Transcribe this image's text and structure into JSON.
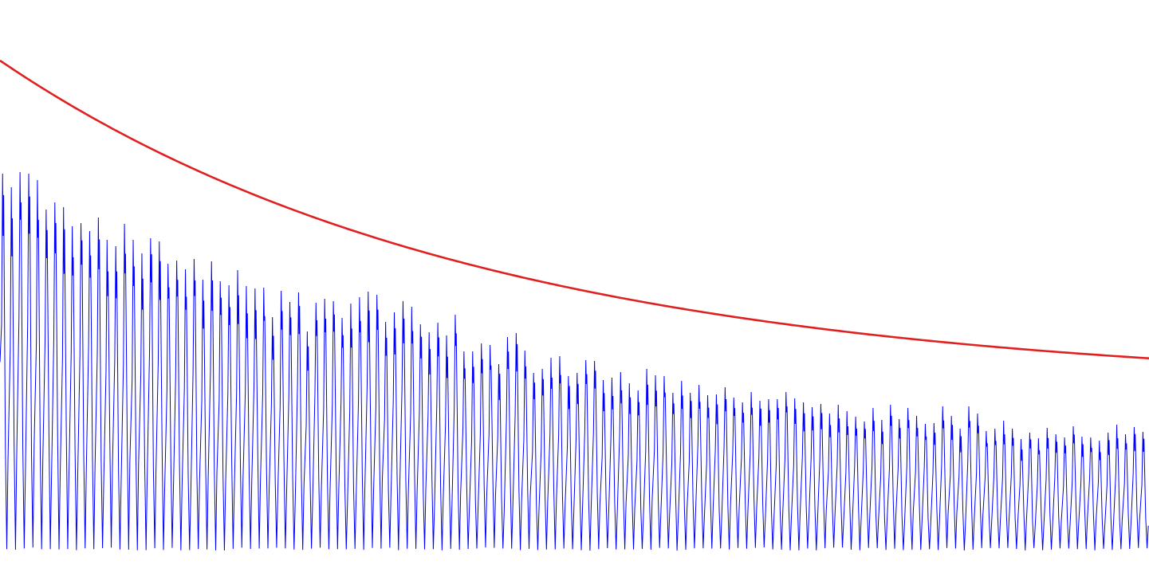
{
  "chart_data": {
    "type": "line",
    "title": "",
    "xlabel": "",
    "ylabel": "",
    "xlim": [
      0,
      132
    ],
    "ylim": [
      0,
      738
    ],
    "grid": false,
    "axes_visible": false,
    "series": [
      {
        "key": "signal",
        "color": "#0000ff",
        "style": "oscillating",
        "cycles": 132,
        "base_value": 47,
        "peak_values": [
          520,
          503,
          522,
          520,
          512,
          475,
          484,
          478,
          454,
          458,
          448,
          465,
          437,
          429,
          457,
          437,
          420,
          439,
          435,
          407,
          411,
          400,
          413,
          387,
          410,
          385,
          380,
          399,
          379,
          376,
          377,
          340,
          373,
          359,
          371,
          322,
          358,
          363,
          360,
          339,
          357,
          365,
          372,
          368,
          334,
          346,
          360,
          353,
          331,
          321,
          333,
          317,
          343,
          297,
          297,
          307,
          305,
          281,
          315,
          320,
          298,
          270,
          275,
          289,
          291,
          266,
          270,
          286,
          285,
          261,
          264,
          271,
          257,
          248,
          275,
          267,
          266,
          245,
          260,
          245,
          255,
          242,
          243,
          252,
          239,
          233,
          246,
          235,
          237,
          237,
          246,
          238,
          233,
          227,
          231,
          219,
          230,
          222,
          215,
          209,
          226,
          211,
          230,
          212,
          226,
          216,
          206,
          207,
          228,
          216,
          200,
          228,
          219,
          197,
          200,
          210,
          200,
          187,
          195,
          188,
          201,
          193,
          189,
          203,
          190,
          189,
          185,
          195,
          205,
          193,
          202,
          196
        ]
      },
      {
        "key": "envelope",
        "color": "#e02020",
        "style": "smooth",
        "points": [
          [
            0,
            662
          ],
          [
            132,
            258
          ]
        ],
        "asymptote": 250,
        "decay_rate": 0.018
      }
    ]
  }
}
